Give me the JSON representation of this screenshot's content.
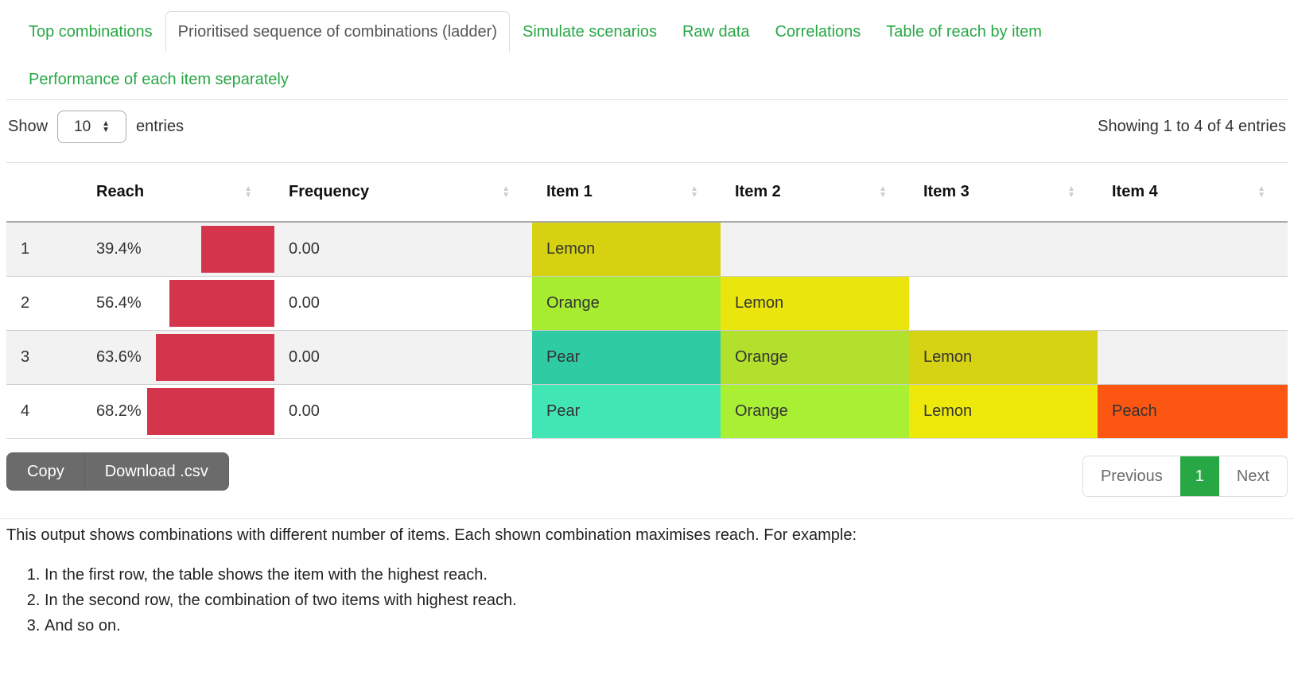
{
  "colors": {
    "accent_green": "#28a745",
    "bar_red": "#d4344c",
    "stripe": "#f2f2f2",
    "button_gray": "#6b6b6b"
  },
  "nav": {
    "tabs": [
      {
        "label": "Top combinations"
      },
      {
        "label": "Prioritised sequence of combinations (ladder)"
      },
      {
        "label": "Simulate scenarios"
      },
      {
        "label": "Raw data"
      },
      {
        "label": "Correlations"
      },
      {
        "label": "Table of reach by item"
      },
      {
        "label": "Performance of each item separately"
      }
    ],
    "active_tab": "Prioritised sequence of combinations (ladder)"
  },
  "controls": {
    "show_label": "Show",
    "entries_label": "entries",
    "page_length": "10",
    "info": "Showing 1 to 4 of 4 entries"
  },
  "table": {
    "headers": [
      "Reach",
      "Frequency",
      "Item 1",
      "Item 2",
      "Item 3",
      "Item 4"
    ],
    "rows": [
      {
        "rank": "1",
        "reach": "39.4%",
        "reach_value": 39.4,
        "frequency": "0.00",
        "items": [
          {
            "label": "Lemon",
            "color": "#d7d211"
          },
          null,
          null,
          null
        ]
      },
      {
        "rank": "2",
        "reach": "56.4%",
        "reach_value": 56.4,
        "frequency": "0.00",
        "items": [
          {
            "label": "Orange",
            "color": "#a8ec32"
          },
          {
            "label": "Lemon",
            "color": "#ebe50e"
          },
          null,
          null
        ]
      },
      {
        "rank": "3",
        "reach": "63.6%",
        "reach_value": 63.6,
        "frequency": "0.00",
        "items": [
          {
            "label": "Pear",
            "color": "#2fcba3"
          },
          {
            "label": "Orange",
            "color": "#b2e02c"
          },
          {
            "label": "Lemon",
            "color": "#d6d214"
          },
          null
        ]
      },
      {
        "rank": "4",
        "reach": "68.2%",
        "reach_value": 68.2,
        "frequency": "0.00",
        "items": [
          {
            "label": "Pear",
            "color": "#42e6b5"
          },
          {
            "label": "Orange",
            "color": "#a9ef34"
          },
          {
            "label": "Lemon",
            "color": "#eee90b"
          },
          {
            "label": "Peach",
            "color": "#fc5613"
          }
        ]
      }
    ]
  },
  "export": {
    "copy_label": "Copy",
    "download_label": "Download .csv"
  },
  "pagination": {
    "previous_label": "Previous",
    "current_page": "1",
    "next_label": "Next"
  },
  "footer": {
    "intro": "This output shows combinations with different number of items. Each shown combination maximises reach. For example:",
    "list": [
      "In the first row, the table shows the item with the highest reach.",
      "In the second row, the combination of two items with highest reach.",
      "And so on."
    ]
  }
}
